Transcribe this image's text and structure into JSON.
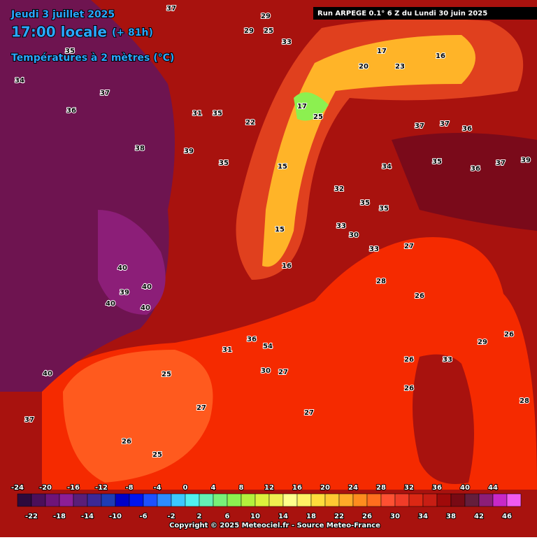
{
  "header": {
    "date": "Jeudi 3 juillet 2025",
    "time": "17:00 locale",
    "lead": "(+ 81h)",
    "variable": "Températures à 2 mètres (°C)",
    "run": "Run ARPEGE 0.1° 6 Z du Lundi 30 juin 2025"
  },
  "map_labels": [
    37,
    29,
    29,
    25,
    35,
    34,
    37,
    36,
    31,
    35,
    33,
    37,
    37,
    36,
    34,
    35,
    36,
    37,
    39,
    38,
    39,
    35,
    32,
    35,
    35,
    33,
    30,
    33,
    27,
    28,
    26,
    40,
    40,
    39,
    40,
    40,
    31,
    36,
    54,
    30,
    27,
    25,
    27,
    27,
    26,
    25,
    26,
    29,
    26,
    28,
    33,
    26,
    40,
    37,
    16,
    15,
    22,
    25,
    17,
    20,
    23,
    16,
    17,
    15
  ],
  "scale": {
    "ticks": [
      -24,
      -22,
      -20,
      -18,
      -16,
      -14,
      -12,
      -10,
      -8,
      -6,
      -4,
      -2,
      0,
      2,
      4,
      6,
      8,
      10,
      12,
      14,
      16,
      18,
      20,
      22,
      24,
      26,
      28,
      30,
      32,
      34,
      36,
      38,
      40,
      42,
      44,
      46
    ],
    "colors": [
      "#2d0a3c",
      "#4b0f5a",
      "#6e1478",
      "#8c1e96",
      "#5a1e78",
      "#3c2896",
      "#1e3cb4",
      "#0000c8",
      "#0014f0",
      "#1e50ff",
      "#2d8cff",
      "#3cc8ff",
      "#50f0f0",
      "#64f0b4",
      "#78f078",
      "#8cf050",
      "#b4f03c",
      "#dcf03c",
      "#f0f050",
      "#ffff8c",
      "#fff064",
      "#ffdc3c",
      "#ffc832",
      "#ffaa28",
      "#ff8c1e",
      "#ff6e1e",
      "#ff5032",
      "#f03c28",
      "#dc2814",
      "#c81e14",
      "#a00a0a",
      "#780a14",
      "#641e3c",
      "#8c1e78",
      "#c828c8",
      "#f05af0"
    ]
  },
  "footer": {
    "copyright": "Copyright © 2025 Meteociel.fr - Source Meteo-France"
  }
}
